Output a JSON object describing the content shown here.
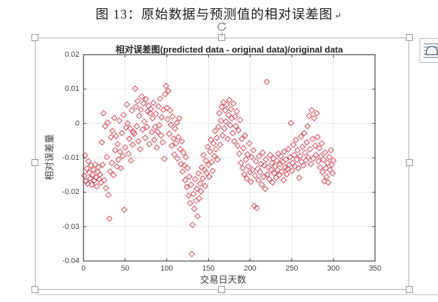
{
  "document": {
    "caption": "图 13：原始数据与预测值的相对误差图",
    "paragraph_mark": "↵"
  },
  "chart_data": {
    "type": "scatter",
    "title": "相对误差图(predicted data - original data)/original data",
    "xlabel": "交易日天数",
    "ylabel": "相对误差量",
    "xlim": [
      0,
      350
    ],
    "ylim": [
      -0.04,
      0.02
    ],
    "xticks": [
      0,
      50,
      100,
      150,
      200,
      250,
      300,
      350
    ],
    "xtick_labels": [
      "0",
      "50",
      "100",
      "150",
      "200",
      "250",
      "300",
      "350"
    ],
    "yticks": [
      0.02,
      0.01,
      0,
      -0.01,
      -0.02,
      -0.03,
      -0.04
    ],
    "ytick_labels": [
      "0.02",
      "0.01",
      "0",
      "-0.01",
      "-0.02",
      "-0.03",
      "-0.04"
    ],
    "grid": true,
    "legend": "none",
    "marker": "diamond-open",
    "marker_color": "#d65361",
    "axis_color": "#3c3c3c",
    "grid_color": "#e4e4e4",
    "points": [
      [
        1,
        -0.0152
      ],
      [
        2,
        -0.0093
      ],
      [
        3,
        -0.0168
      ],
      [
        4,
        -0.0131
      ],
      [
        5,
        -0.0175
      ],
      [
        6,
        -0.011
      ],
      [
        7,
        -0.0143
      ],
      [
        8,
        -0.016
      ],
      [
        9,
        -0.0122
      ],
      [
        10,
        -0.0178
      ],
      [
        11,
        -0.0149
      ],
      [
        12,
        -0.0135
      ],
      [
        13,
        -0.0166
      ],
      [
        14,
        -0.0119
      ],
      [
        15,
        -0.0157
      ],
      [
        16,
        -0.0183
      ],
      [
        17,
        -0.0141
      ],
      [
        18,
        -0.0127
      ],
      [
        19,
        -0.0162
      ],
      [
        20,
        -0.0148
      ],
      [
        21,
        -0.0172
      ],
      [
        22,
        -0.0055
      ],
      [
        23,
        -0.012
      ],
      [
        24,
        0.003
      ],
      [
        25,
        -0.0165
      ],
      [
        26,
        -0.0008
      ],
      [
        27,
        -0.0188
      ],
      [
        28,
        -0.0098
      ],
      [
        29,
        0.0002
      ],
      [
        30,
        -0.0208
      ],
      [
        31,
        -0.0277
      ],
      [
        32,
        -0.014
      ],
      [
        33,
        -0.004
      ],
      [
        34,
        -0.0115
      ],
      [
        35,
        -0.0022
      ],
      [
        36,
        -0.015
      ],
      [
        37,
        0.0016
      ],
      [
        38,
        -0.0078
      ],
      [
        39,
        -0.0037
      ],
      [
        40,
        -0.0125
      ],
      [
        41,
        -0.006
      ],
      [
        42,
        -0.0105
      ],
      [
        43,
        0.0008
      ],
      [
        44,
        -0.0082
      ],
      [
        45,
        -0.013
      ],
      [
        46,
        -0.0028
      ],
      [
        47,
        -0.0095
      ],
      [
        48,
        0.0025
      ],
      [
        49,
        -0.0251
      ],
      [
        50,
        -0.007
      ],
      [
        51,
        -0.0012
      ],
      [
        52,
        0.0055
      ],
      [
        53,
        0.0
      ],
      [
        54,
        -0.0088
      ],
      [
        55,
        -0.0045
      ],
      [
        56,
        -0.0015
      ],
      [
        57,
        -0.0108
      ],
      [
        58,
        0.0038
      ],
      [
        59,
        -0.0062
      ],
      [
        60,
        -0.0025
      ],
      [
        61,
        -0.003
      ],
      [
        62,
        0.0101
      ],
      [
        63,
        0.0048
      ],
      [
        64,
        -0.0008
      ],
      [
        65,
        0.0065
      ],
      [
        66,
        -0.0052
      ],
      [
        67,
        0.0022
      ],
      [
        68,
        -0.0075
      ],
      [
        69,
        0.004
      ],
      [
        70,
        0.0078
      ],
      [
        71,
        -0.0018
      ],
      [
        72,
        0.0058
      ],
      [
        73,
        0.0005
      ],
      [
        74,
        -0.0042
      ],
      [
        75,
        0.007
      ],
      [
        76,
        -0.001
      ],
      [
        77,
        0.0035
      ],
      [
        78,
        0.0052
      ],
      [
        79,
        -0.006
      ],
      [
        80,
        0.003
      ],
      [
        81,
        0.0042
      ],
      [
        82,
        -0.0025
      ],
      [
        83,
        0.0015
      ],
      [
        84,
        0.006
      ],
      [
        85,
        -0.0048
      ],
      [
        86,
        -0.001
      ],
      [
        87,
        0.0028
      ],
      [
        88,
        -0.007
      ],
      [
        89,
        -0.0024
      ],
      [
        90,
        0.005
      ],
      [
        91,
        -0.0005
      ],
      [
        92,
        0.0072
      ],
      [
        93,
        -0.0035
      ],
      [
        94,
        0.0018
      ],
      [
        95,
        -0.0055
      ],
      [
        96,
        0.004
      ],
      [
        97,
        -0.0103
      ],
      [
        98,
        0.0085
      ],
      [
        99,
        0.0109
      ],
      [
        100,
        0.0045
      ],
      [
        101,
        0.0012
      ],
      [
        102,
        0.0095
      ],
      [
        103,
        -0.003
      ],
      [
        104,
        0.0038
      ],
      [
        105,
        -0.0004
      ],
      [
        106,
        -0.0065
      ],
      [
        107,
        0.002
      ],
      [
        108,
        -0.0044
      ],
      [
        109,
        -0.009
      ],
      [
        110,
        -0.0015
      ],
      [
        111,
        -0.0058
      ],
      [
        112,
        0.0002
      ],
      [
        113,
        -0.0102
      ],
      [
        114,
        -0.004
      ],
      [
        115,
        0.0015
      ],
      [
        116,
        -0.0075
      ],
      [
        117,
        -0.0118
      ],
      [
        118,
        -0.0052
      ],
      [
        119,
        -0.014
      ],
      [
        120,
        -0.0085
      ],
      [
        121,
        -0.0122
      ],
      [
        122,
        -0.0165
      ],
      [
        123,
        -0.0098
      ],
      [
        124,
        -0.0185
      ],
      [
        125,
        -0.013
      ],
      [
        126,
        -0.021
      ],
      [
        127,
        -0.0155
      ],
      [
        128,
        -0.0232
      ],
      [
        129,
        -0.0178
      ],
      [
        130,
        -0.038
      ],
      [
        131,
        -0.0295
      ],
      [
        132,
        -0.0205
      ],
      [
        133,
        -0.0248
      ],
      [
        134,
        -0.0162
      ],
      [
        135,
        -0.0225
      ],
      [
        136,
        -0.019
      ],
      [
        137,
        -0.027
      ],
      [
        138,
        -0.0145
      ],
      [
        139,
        -0.0218
      ],
      [
        140,
        -0.0175
      ],
      [
        141,
        -0.0198
      ],
      [
        142,
        -0.0128
      ],
      [
        143,
        -0.016
      ],
      [
        144,
        -0.0092
      ],
      [
        145,
        -0.0135
      ],
      [
        146,
        -0.0182
      ],
      [
        147,
        -0.0108
      ],
      [
        148,
        -0.0145
      ],
      [
        149,
        -0.0068
      ],
      [
        150,
        -0.012
      ],
      [
        151,
        -0.0155
      ],
      [
        152,
        -0.0082
      ],
      [
        153,
        -0.0048
      ],
      [
        154,
        -0.0112
      ],
      [
        155,
        -0.0138
      ],
      [
        156,
        -0.0058
      ],
      [
        157,
        -0.0095
      ],
      [
        158,
        -0.0022
      ],
      [
        159,
        -0.0075
      ],
      [
        160,
        -0.0042
      ],
      [
        161,
        -0.0105
      ],
      [
        162,
        -0.001
      ],
      [
        163,
        0.003
      ],
      [
        164,
        -0.0062
      ],
      [
        165,
        0.0008
      ],
      [
        166,
        0.0048
      ],
      [
        167,
        -0.0035
      ],
      [
        168,
        0.0062
      ],
      [
        169,
        -0.0015
      ],
      [
        170,
        0.0038
      ],
      [
        171,
        0.0005
      ],
      [
        172,
        0.0055
      ],
      [
        173,
        -0.0045
      ],
      [
        174,
        0.0025
      ],
      [
        175,
        0.0068
      ],
      [
        176,
        -0.0005
      ],
      [
        177,
        0.0042
      ],
      [
        178,
        0.0015
      ],
      [
        179,
        -0.0028
      ],
      [
        180,
        0.0058
      ],
      [
        181,
        -0.0052
      ],
      [
        182,
        0.002
      ],
      [
        183,
        -0.0008
      ],
      [
        184,
        0.0035
      ],
      [
        185,
        -0.0065
      ],
      [
        186,
        -0.002
      ],
      [
        187,
        -0.0088
      ],
      [
        188,
        0.001
      ],
      [
        189,
        -0.0115
      ],
      [
        190,
        -0.0045
      ],
      [
        191,
        -0.013
      ],
      [
        192,
        -0.0072
      ],
      [
        193,
        -0.0148
      ],
      [
        194,
        -0.0035
      ],
      [
        195,
        -0.0105
      ],
      [
        196,
        -0.016
      ],
      [
        197,
        -0.009
      ],
      [
        198,
        -0.0125
      ],
      [
        199,
        -0.0058
      ],
      [
        200,
        -0.0142
      ],
      [
        201,
        -0.017
      ],
      [
        202,
        -0.0098
      ],
      [
        203,
        -0.0135
      ],
      [
        204,
        -0.0078
      ],
      [
        205,
        -0.024
      ],
      [
        206,
        -0.0152
      ],
      [
        207,
        -0.011
      ],
      [
        208,
        -0.0246
      ],
      [
        209,
        -0.0132
      ],
      [
        210,
        -0.0165
      ],
      [
        211,
        -0.0095
      ],
      [
        212,
        -0.0142
      ],
      [
        213,
        -0.0118
      ],
      [
        214,
        -0.0178
      ],
      [
        215,
        -0.0085
      ],
      [
        216,
        -0.0155
      ],
      [
        217,
        -0.0122
      ],
      [
        218,
        -0.019
      ],
      [
        219,
        -0.0105
      ],
      [
        220,
        0.0121
      ],
      [
        221,
        -0.0148
      ],
      [
        222,
        -0.0128
      ],
      [
        223,
        -0.0162
      ],
      [
        224,
        -0.0092
      ],
      [
        225,
        -0.0135
      ],
      [
        226,
        -0.0115
      ],
      [
        227,
        -0.0172
      ],
      [
        228,
        -0.0102
      ],
      [
        229,
        -0.0145
      ],
      [
        230,
        -0.0125
      ],
      [
        231,
        -0.0158
      ],
      [
        232,
        -0.0108
      ],
      [
        233,
        -0.0135
      ],
      [
        234,
        -0.0088
      ],
      [
        235,
        -0.015
      ],
      [
        236,
        -0.0118
      ],
      [
        237,
        -0.0095
      ],
      [
        238,
        -0.014
      ],
      [
        239,
        -0.0112
      ],
      [
        240,
        -0.0165
      ],
      [
        241,
        -0.0082
      ],
      [
        242,
        -0.0128
      ],
      [
        243,
        -0.0105
      ],
      [
        244,
        -0.0148
      ],
      [
        245,
        -0.0132
      ],
      [
        246,
        -0.0075
      ],
      [
        247,
        -0.012
      ],
      [
        248,
        -0.0098
      ],
      [
        249,
        0.0001
      ],
      [
        250,
        -0.0138
      ],
      [
        251,
        -0.0115
      ],
      [
        252,
        -0.0062
      ],
      [
        253,
        -0.0092
      ],
      [
        254,
        -0.0125
      ],
      [
        255,
        -0.0048
      ],
      [
        256,
        -0.0105
      ],
      [
        257,
        -0.0078
      ],
      [
        258,
        -0.013
      ],
      [
        259,
        -0.0158
      ],
      [
        260,
        -0.0095
      ],
      [
        261,
        -0.0038
      ],
      [
        262,
        -0.0112
      ],
      [
        263,
        -0.0068
      ],
      [
        264,
        -0.0122
      ],
      [
        265,
        -0.0028
      ],
      [
        266,
        -0.0085
      ],
      [
        267,
        -0.0108
      ],
      [
        268,
        -0.0055
      ],
      [
        269,
        -0.0008
      ],
      [
        270,
        -0.0098
      ],
      [
        271,
        0.0022
      ],
      [
        272,
        -0.0075
      ],
      [
        273,
        -0.0118
      ],
      [
        274,
        0.0038
      ],
      [
        275,
        -0.0045
      ],
      [
        276,
        -0.0102
      ],
      [
        277,
        0.0015
      ],
      [
        278,
        -0.0065
      ],
      [
        279,
        -0.0092
      ],
      [
        280,
        0.003
      ],
      [
        281,
        -0.004
      ],
      [
        282,
        -0.011
      ],
      [
        283,
        -0.0072
      ],
      [
        284,
        -0.0128
      ],
      [
        285,
        -0.0095
      ],
      [
        286,
        -0.0058
      ],
      [
        287,
        -0.0142
      ],
      [
        288,
        -0.0105
      ],
      [
        289,
        -0.0168
      ],
      [
        290,
        -0.0085
      ],
      [
        291,
        -0.013
      ],
      [
        292,
        -0.0155
      ],
      [
        293,
        -0.0115
      ],
      [
        294,
        -0.0172
      ],
      [
        295,
        -0.0098
      ],
      [
        296,
        -0.0135
      ],
      [
        297,
        -0.0078
      ],
      [
        298,
        -0.012
      ],
      [
        299,
        -0.0145
      ],
      [
        300,
        -0.0108
      ]
    ]
  }
}
